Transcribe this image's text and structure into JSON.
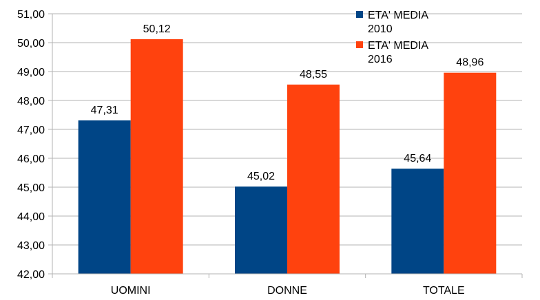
{
  "chart_data": {
    "type": "bar",
    "categories": [
      "UOMINI",
      "DONNE",
      "TOTALE"
    ],
    "series": [
      {
        "name": "ETA' MEDIA 2010",
        "legend_lines": [
          "ETA' MEDIA",
          "2010"
        ],
        "color": "#004586",
        "values": [
          47.31,
          45.02,
          45.64
        ],
        "labels": [
          "47,31",
          "45,02",
          "45,64"
        ]
      },
      {
        "name": "ETA' MEDIA 2016",
        "legend_lines": [
          "ETA' MEDIA",
          "2016"
        ],
        "color": "#ff420e",
        "values": [
          50.12,
          48.55,
          48.96
        ],
        "labels": [
          "50,12",
          "48,55",
          "48,96"
        ]
      }
    ],
    "ylim": [
      42,
      51
    ],
    "yticks": [
      42,
      43,
      44,
      45,
      46,
      47,
      48,
      49,
      50,
      51
    ],
    "ytick_labels": [
      "42,00",
      "43,00",
      "44,00",
      "45,00",
      "46,00",
      "47,00",
      "48,00",
      "49,00",
      "50,00",
      "51,00"
    ],
    "grid": true,
    "legend_position": "top-right",
    "title": "",
    "xlabel": "",
    "ylabel": ""
  }
}
